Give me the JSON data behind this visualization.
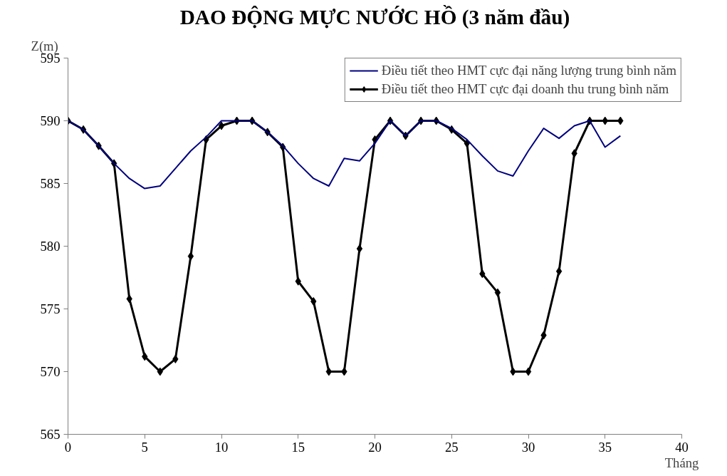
{
  "chart_data": {
    "type": "line",
    "title": "DAO ĐỘNG MỰC NƯỚC HỒ (3 năm đầu)",
    "xlabel": "Tháng",
    "ylabel": "Z(m)",
    "x": [
      0,
      1,
      2,
      3,
      4,
      5,
      6,
      7,
      8,
      9,
      10,
      11,
      12,
      13,
      14,
      15,
      16,
      17,
      18,
      19,
      20,
      21,
      22,
      23,
      24,
      25,
      26,
      27,
      28,
      29,
      30,
      31,
      32,
      33,
      34,
      35,
      36
    ],
    "series": [
      {
        "name": "Điều tiết theo HMT cực đại năng lượng trung bình năm",
        "color": "#000080",
        "marker": "none",
        "values": [
          590,
          589.3,
          588,
          586.6,
          585.4,
          584.6,
          584.8,
          586.2,
          587.6,
          588.7,
          590,
          590,
          590,
          589.1,
          588,
          586.6,
          585.4,
          584.8,
          587,
          586.8,
          588.2,
          590,
          588.8,
          590,
          590,
          589.4,
          588.5,
          587.2,
          586,
          585.6,
          587.6,
          589.4,
          588.6,
          589.6,
          590,
          587.9,
          588.8
        ]
      },
      {
        "name": "Điều tiết theo HMT cực đại doanh thu trung bình năm",
        "color": "#000000",
        "marker": "diamond",
        "values": [
          590,
          589.3,
          588,
          586.6,
          575.8,
          571.2,
          570,
          571,
          579.2,
          588.5,
          589.6,
          590,
          590,
          589.1,
          587.9,
          577.2,
          575.6,
          570,
          570,
          579.8,
          588.5,
          590,
          588.8,
          590,
          590,
          589.3,
          588.2,
          577.8,
          576.3,
          570,
          570,
          572.9,
          578,
          587.4,
          590,
          590,
          590
        ]
      }
    ],
    "xlim": [
      0,
      40
    ],
    "ylim": [
      565,
      595
    ],
    "xticks": [
      0,
      5,
      10,
      15,
      20,
      25,
      30,
      35,
      40
    ],
    "yticks": [
      565,
      570,
      575,
      580,
      585,
      590,
      595
    ],
    "legend": "top right",
    "line_style": "solid"
  }
}
